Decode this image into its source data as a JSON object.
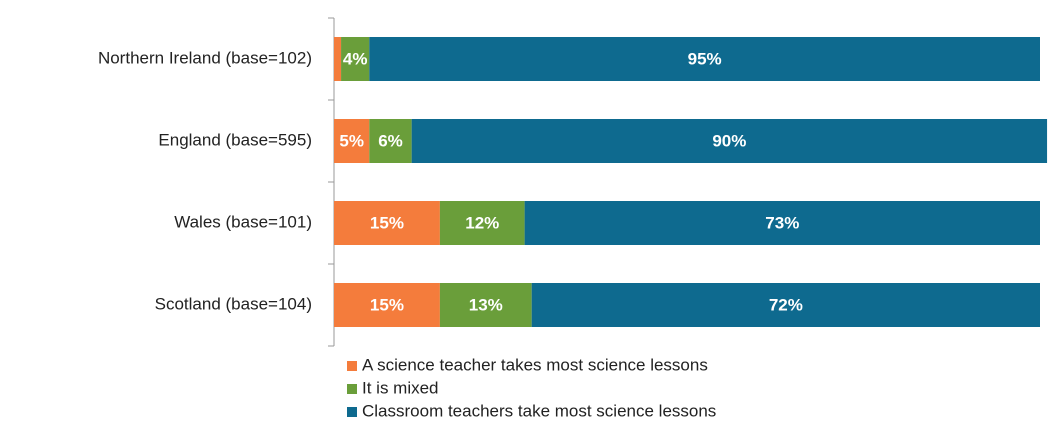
{
  "chart_data": {
    "type": "stacked_bar_horizontal",
    "categories": [
      "Northern Ireland (base=102)",
      "England (base=595)",
      "Wales (base=101)",
      "Scotland (base=104)"
    ],
    "xlim": [
      0,
      100
    ],
    "series": [
      {
        "name": "A science teacher takes most science lessons",
        "color": "#f47c3c",
        "values": [
          1,
          5,
          15,
          15
        ],
        "value_labels": [
          null,
          "5%",
          "15%",
          "15%"
        ]
      },
      {
        "name": "It is mixed",
        "color": "#6a9e3a",
        "values": [
          4,
          6,
          12,
          13
        ],
        "value_labels": [
          "4%",
          "6%",
          "12%",
          "13%"
        ]
      },
      {
        "name": "Classroom teachers take most science lessons",
        "color": "#0e6a8f",
        "values": [
          95,
          90,
          73,
          72
        ],
        "value_labels": [
          "95%",
          "90%",
          "73%",
          "72%"
        ]
      }
    ]
  }
}
